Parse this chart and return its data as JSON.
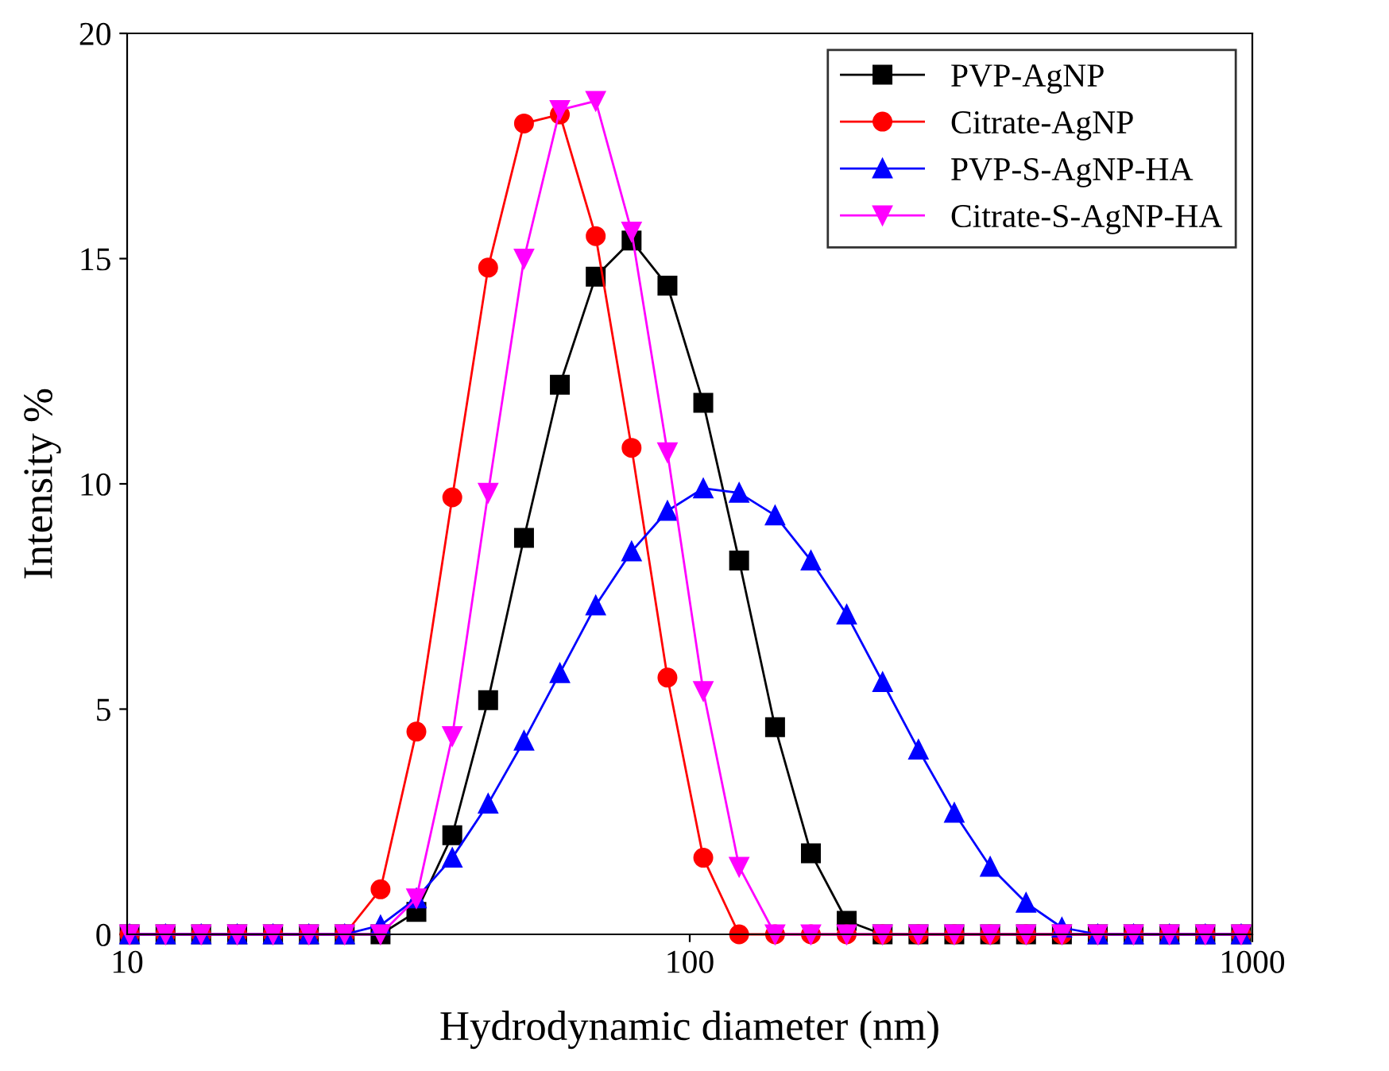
{
  "chart_data": {
    "type": "line",
    "xlabel": "Hydrodynamic diameter (nm)",
    "ylabel": "Intensity %",
    "log": "x",
    "xlim": [
      10,
      1000
    ],
    "xticks": [
      10,
      100,
      1000
    ],
    "ylim": [
      0,
      20
    ],
    "yticks": [
      0,
      5,
      10,
      15,
      20
    ],
    "grid": false,
    "legend": "top right",
    "line_style": "solid",
    "x": [
      10.1,
      11.7,
      13.54,
      15.69,
      18.17,
      21.04,
      24.36,
      28.21,
      32.67,
      37.84,
      43.82,
      50.75,
      58.77,
      68.06,
      78.82,
      91.28,
      105.7,
      122.4,
      141.8,
      164.2,
      190.1,
      220.2,
      255.0,
      295.3,
      342.0,
      396.1,
      458.7,
      531.2,
      615.1,
      712.4,
      825.0,
      955.4
    ],
    "series": [
      {
        "name": "PVP-AgNP",
        "color": "#000000",
        "marker": "square",
        "values": [
          0,
          0,
          0,
          0,
          0,
          0,
          0,
          0,
          0.5,
          2.2,
          5.2,
          8.8,
          12.2,
          14.6,
          15.4,
          14.4,
          11.8,
          8.3,
          4.6,
          1.8,
          0.3,
          0,
          0,
          0,
          0,
          0,
          0,
          0,
          0,
          0,
          0,
          0
        ]
      },
      {
        "name": "Citrate-AgNP",
        "color": "#ff0000",
        "marker": "circle",
        "values": [
          0,
          0,
          0,
          0,
          0,
          0,
          0,
          1.0,
          4.5,
          9.7,
          14.8,
          18.0,
          18.2,
          15.5,
          10.8,
          5.7,
          1.7,
          0,
          0,
          0,
          0,
          0,
          0,
          0,
          0,
          0,
          0,
          0,
          0,
          0,
          0,
          0
        ]
      },
      {
        "name": "PVP-S-AgNP-HA",
        "color": "#0000ff",
        "marker": "triangle",
        "values": [
          0,
          0,
          0,
          0,
          0,
          0,
          0,
          0.2,
          0.8,
          1.7,
          2.9,
          4.3,
          5.8,
          7.3,
          8.5,
          9.4,
          9.9,
          9.8,
          9.3,
          8.3,
          7.1,
          5.6,
          4.1,
          2.7,
          1.5,
          0.7,
          0.15,
          0,
          0,
          0,
          0,
          0
        ]
      },
      {
        "name": "Citrate-S-AgNP-HA",
        "color": "#ff00ff",
        "marker": "triangle_down",
        "values": [
          0,
          0,
          0,
          0,
          0,
          0,
          0,
          0,
          0.8,
          4.4,
          9.8,
          15.0,
          18.3,
          18.5,
          15.6,
          10.7,
          5.4,
          1.5,
          0,
          0,
          0,
          0,
          0,
          0,
          0,
          0,
          0,
          0,
          0,
          0,
          0,
          0
        ]
      }
    ]
  }
}
